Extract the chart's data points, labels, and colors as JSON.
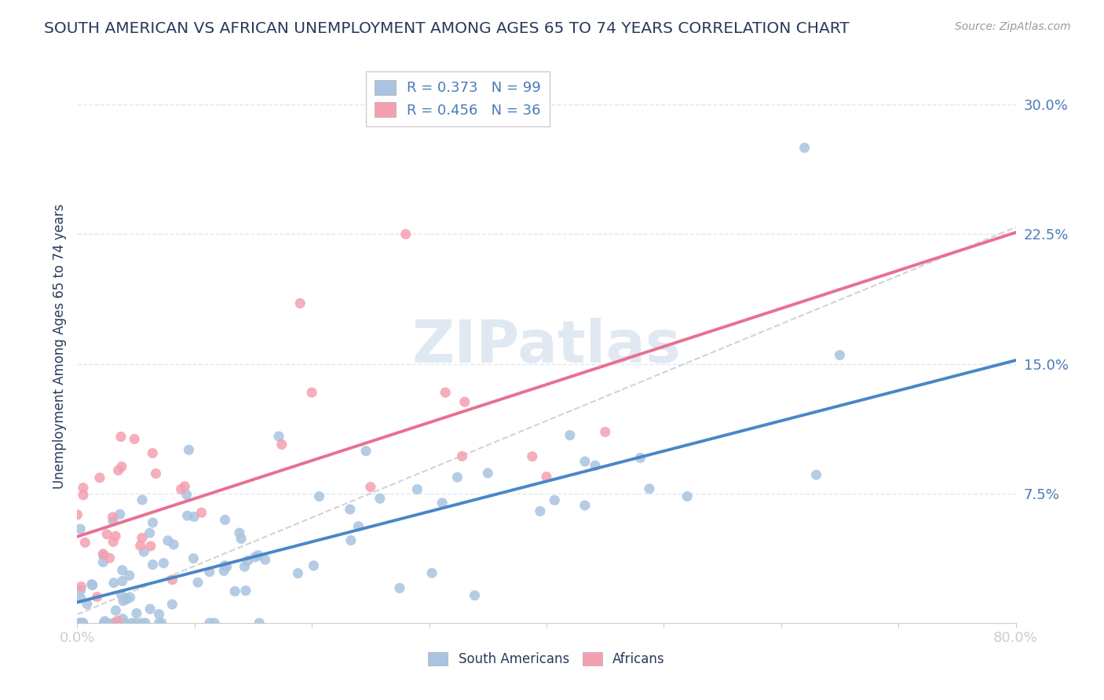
{
  "title": "SOUTH AMERICAN VS AFRICAN UNEMPLOYMENT AMONG AGES 65 TO 74 YEARS CORRELATION CHART",
  "source": "Source: ZipAtlas.com",
  "ylabel": "Unemployment Among Ages 65 to 74 years",
  "xlim": [
    0.0,
    0.8
  ],
  "ylim": [
    0.0,
    0.32
  ],
  "xticks": [
    0.0,
    0.1,
    0.2,
    0.3,
    0.4,
    0.5,
    0.6,
    0.7,
    0.8
  ],
  "ytick_positions": [
    0.075,
    0.15,
    0.225,
    0.3
  ],
  "ytick_labels": [
    "7.5%",
    "15.0%",
    "22.5%",
    "30.0%"
  ],
  "sa_color": "#a8c4e0",
  "af_color": "#f4a0b0",
  "sa_line_color": "#4a86c8",
  "af_line_color": "#e87090",
  "diag_line_color": "#c8c8c8",
  "watermark": "ZIPatlas",
  "watermark_color": "#c8d8e8",
  "legend_sa_label": "R = 0.373   N = 99",
  "legend_af_label": "R = 0.456   N = 36",
  "legend_sa_color": "#a8c4e0",
  "legend_af_color": "#f4a0b0",
  "sa_N": 99,
  "af_N": 36,
  "sa_intercept": 0.012,
  "sa_slope": 0.175,
  "af_intercept": 0.05,
  "af_slope": 0.22,
  "diag_intercept": 0.005,
  "diag_slope": 0.28,
  "bottom_legend_sa": "South Americans",
  "bottom_legend_af": "Africans",
  "background_color": "#ffffff",
  "grid_color": "#e0e8f0",
  "title_color": "#2a3a5a",
  "axis_label_color": "#2a3a5a",
  "tick_label_color": "#4a7ab8",
  "source_color": "#999999"
}
